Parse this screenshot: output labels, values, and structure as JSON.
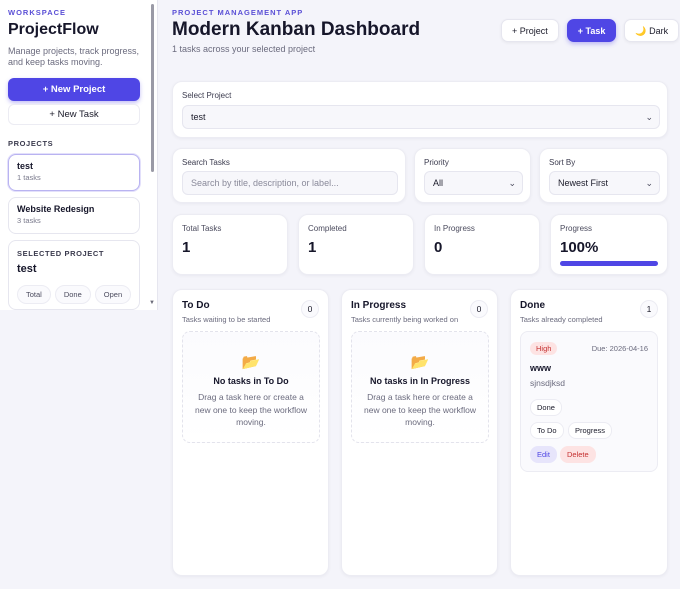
{
  "sidebar": {
    "eyebrow": "WORKSPACE",
    "title": "ProjectFlow",
    "description": "Manage projects, track progress, and keep tasks moving.",
    "new_project_label": "+ New Project",
    "new_task_label": "+ New Task",
    "projects_heading": "PROJECTS",
    "projects": [
      {
        "name": "test",
        "count": "1 tasks",
        "active": true
      },
      {
        "name": "Website Redesign",
        "count": "3 tasks",
        "active": false
      }
    ],
    "selected": {
      "label": "SELECTED PROJECT",
      "name": "test",
      "pills": [
        "Total",
        "Done",
        "Open"
      ]
    }
  },
  "header": {
    "eyebrow": "PROJECT MANAGEMENT APP",
    "title": "Modern Kanban Dashboard",
    "subtitle": "1 tasks across your selected project",
    "project_button": "+ Project",
    "task_button": "+ Task",
    "theme_button": "🌙 Dark"
  },
  "filters": {
    "select_project_label": "Select Project",
    "select_project_value": "test",
    "search_label": "Search Tasks",
    "search_placeholder": "Search by title, description, or label...",
    "priority_label": "Priority",
    "priority_value": "All",
    "sort_label": "Sort By",
    "sort_value": "Newest First"
  },
  "stats": {
    "total_label": "Total Tasks",
    "total_value": "1",
    "completed_label": "Completed",
    "completed_value": "1",
    "in_progress_label": "In Progress",
    "in_progress_value": "0",
    "progress_label": "Progress",
    "progress_value": "100%",
    "progress_fraction": 1.0
  },
  "columns": [
    {
      "title": "To Do",
      "subtitle": "Tasks waiting to be started",
      "count": "0",
      "empty_title": "No tasks in To Do",
      "empty_text": "Drag a task here or create a new one to keep the workflow moving."
    },
    {
      "title": "In Progress",
      "subtitle": "Tasks currently being worked on",
      "count": "0",
      "empty_title": "No tasks in In Progress",
      "empty_text": "Drag a task here or create a new one to keep the workflow moving."
    },
    {
      "title": "Done",
      "subtitle": "Tasks already completed",
      "count": "1",
      "task": {
        "priority": "High",
        "due": "Due: 2026-04-16",
        "title": "www",
        "description": "sjnsdjksd",
        "status": "Done",
        "move_todo": "To Do",
        "move_progress": "Progress",
        "edit": "Edit",
        "delete": "Delete"
      }
    }
  ],
  "icons": {
    "folder": "folder-icon",
    "moon": "moon-icon",
    "chevron": "chevron-down-icon"
  },
  "colors": {
    "accent": "#4f46e5",
    "danger": "#c53030"
  }
}
